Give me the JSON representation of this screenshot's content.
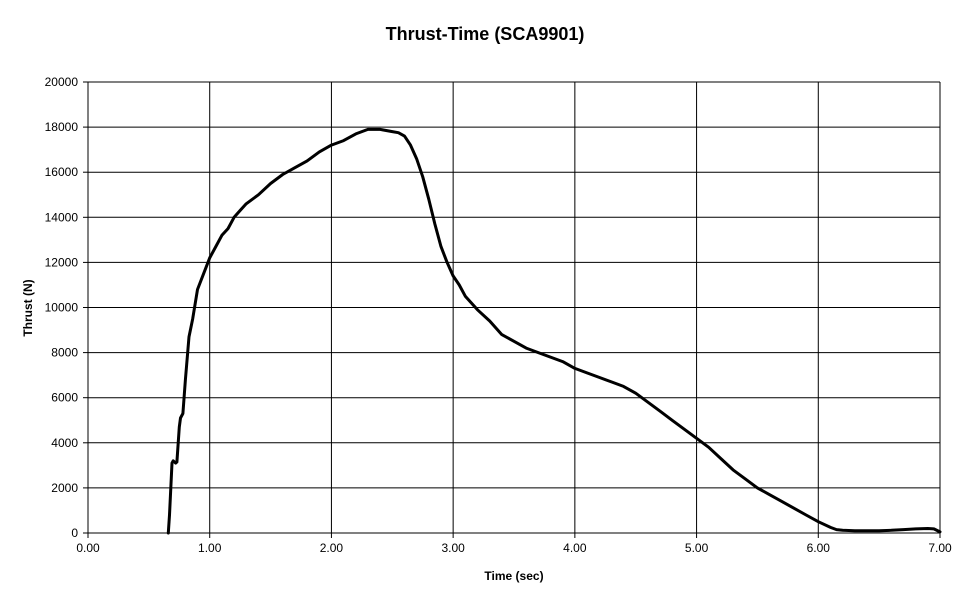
{
  "chart_data": {
    "type": "line",
    "title": "Thrust-Time (SCA9901)",
    "xlabel": "Time (sec)",
    "ylabel": "Thrust (N)",
    "xlim": [
      0,
      7
    ],
    "ylim": [
      0,
      20000
    ],
    "xticks": [
      "0.00",
      "1.00",
      "2.00",
      "3.00",
      "4.00",
      "5.00",
      "6.00",
      "7.00"
    ],
    "yticks": [
      "0",
      "2000",
      "4000",
      "6000",
      "8000",
      "10000",
      "12000",
      "14000",
      "16000",
      "18000",
      "20000"
    ],
    "grid": true,
    "legend": "none",
    "series": [
      {
        "color": "#000000",
        "x": [
          0.66,
          0.67,
          0.69,
          0.7,
          0.72,
          0.73,
          0.75,
          0.76,
          0.78,
          0.8,
          0.83,
          0.86,
          0.9,
          0.95,
          1.0,
          1.05,
          1.1,
          1.15,
          1.2,
          1.25,
          1.3,
          1.4,
          1.5,
          1.6,
          1.7,
          1.8,
          1.9,
          2.0,
          2.1,
          2.2,
          2.3,
          2.4,
          2.5,
          2.55,
          2.6,
          2.65,
          2.7,
          2.75,
          2.8,
          2.85,
          2.9,
          2.95,
          3.0,
          3.05,
          3.1,
          3.15,
          3.2,
          3.3,
          3.4,
          3.5,
          3.6,
          3.7,
          3.8,
          3.9,
          4.0,
          4.1,
          4.2,
          4.3,
          4.4,
          4.5,
          4.6,
          4.7,
          4.8,
          4.9,
          5.0,
          5.1,
          5.2,
          5.3,
          5.4,
          5.5,
          5.6,
          5.7,
          5.8,
          5.9,
          6.0,
          6.1,
          6.15,
          6.2,
          6.3,
          6.4,
          6.5,
          6.6,
          6.7,
          6.8,
          6.9,
          6.95,
          7.0
        ],
        "values": [
          0,
          800,
          3100,
          3200,
          3100,
          3150,
          4700,
          5100,
          5300,
          6800,
          8700,
          9500,
          10800,
          11500,
          12200,
          12700,
          13200,
          13500,
          14000,
          14300,
          14600,
          15000,
          15500,
          15900,
          16200,
          16500,
          16900,
          17200,
          17400,
          17700,
          17900,
          17900,
          17800,
          17750,
          17600,
          17200,
          16600,
          15800,
          14800,
          13700,
          12700,
          12000,
          11400,
          11000,
          10500,
          10200,
          9900,
          9400,
          8800,
          8500,
          8200,
          8000,
          7800,
          7600,
          7300,
          7100,
          6900,
          6700,
          6500,
          6200,
          5800,
          5400,
          5000,
          4600,
          4200,
          3800,
          3300,
          2800,
          2400,
          2000,
          1700,
          1400,
          1100,
          800,
          500,
          250,
          150,
          120,
          100,
          100,
          100,
          120,
          150,
          180,
          200,
          180,
          50
        ]
      }
    ]
  }
}
